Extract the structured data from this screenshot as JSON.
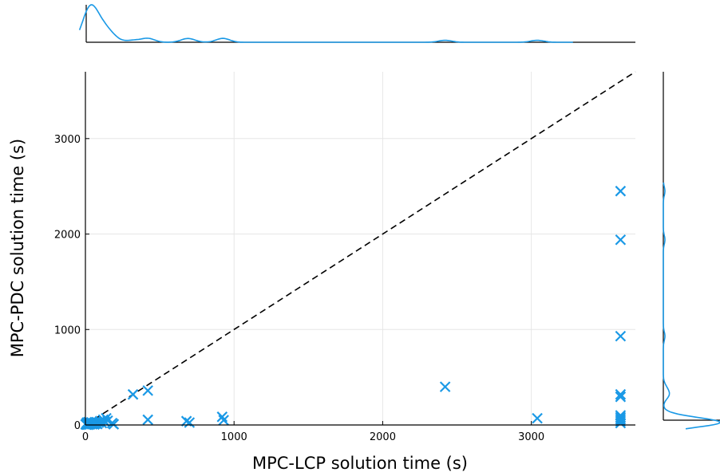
{
  "chart_data": {
    "type": "scatter",
    "title": "",
    "xlabel": "MPC-LCP solution time (s)",
    "ylabel": "MPC-PDC solution time (s)",
    "xlim": [
      0,
      3700
    ],
    "ylim": [
      0,
      3700
    ],
    "xticks": [
      0,
      1000,
      2000,
      3000
    ],
    "yticks": [
      0,
      1000,
      2000,
      3000
    ],
    "xtick_labels": [
      "0",
      "1000",
      "2000",
      "3000"
    ],
    "ytick_labels": [
      "0",
      "1000",
      "2000",
      "3000"
    ],
    "grid": true,
    "legend": "none",
    "reference_line": {
      "style": "dashed",
      "color": "#000000",
      "y_equals_x": true
    },
    "marker": "x",
    "series_color": "#1a99e6",
    "points": [
      {
        "x": 2,
        "y": 5
      },
      {
        "x": 5,
        "y": 12
      },
      {
        "x": 8,
        "y": 3
      },
      {
        "x": 10,
        "y": 25
      },
      {
        "x": 12,
        "y": 8
      },
      {
        "x": 15,
        "y": 18
      },
      {
        "x": 18,
        "y": 2
      },
      {
        "x": 20,
        "y": 30
      },
      {
        "x": 25,
        "y": 10
      },
      {
        "x": 28,
        "y": 22
      },
      {
        "x": 30,
        "y": 5
      },
      {
        "x": 35,
        "y": 15
      },
      {
        "x": 40,
        "y": 28
      },
      {
        "x": 45,
        "y": 8
      },
      {
        "x": 50,
        "y": 12
      },
      {
        "x": 55,
        "y": 20
      },
      {
        "x": 60,
        "y": 5
      },
      {
        "x": 65,
        "y": 30
      },
      {
        "x": 70,
        "y": 15
      },
      {
        "x": 80,
        "y": 10
      },
      {
        "x": 90,
        "y": 25
      },
      {
        "x": 100,
        "y": 40
      },
      {
        "x": 110,
        "y": 20
      },
      {
        "x": 120,
        "y": 55
      },
      {
        "x": 130,
        "y": 35
      },
      {
        "x": 140,
        "y": 70
      },
      {
        "x": 150,
        "y": 45
      },
      {
        "x": 180,
        "y": 20
      },
      {
        "x": 190,
        "y": 8
      },
      {
        "x": 320,
        "y": 320
      },
      {
        "x": 420,
        "y": 360
      },
      {
        "x": 420,
        "y": 55
      },
      {
        "x": 680,
        "y": 40
      },
      {
        "x": 700,
        "y": 25
      },
      {
        "x": 920,
        "y": 85
      },
      {
        "x": 930,
        "y": 50
      },
      {
        "x": 2420,
        "y": 400
      },
      {
        "x": 3040,
        "y": 70
      },
      {
        "x": 3600,
        "y": 2450
      },
      {
        "x": 3600,
        "y": 1940
      },
      {
        "x": 3600,
        "y": 930
      },
      {
        "x": 3600,
        "y": 320
      },
      {
        "x": 3600,
        "y": 295
      },
      {
        "x": 3600,
        "y": 100
      },
      {
        "x": 3600,
        "y": 80
      },
      {
        "x": 3600,
        "y": 60
      },
      {
        "x": 3600,
        "y": 40
      },
      {
        "x": 3600,
        "y": 20
      }
    ]
  }
}
